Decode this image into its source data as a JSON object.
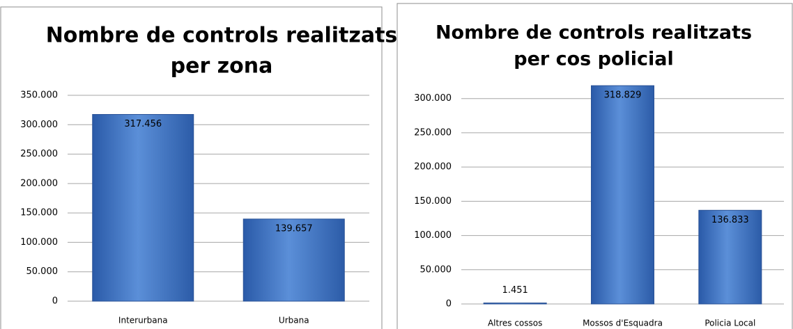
{
  "chart_data": [
    {
      "type": "bar",
      "title": [
        "Nombre de controls realitzats",
        "per zona"
      ],
      "categories": [
        "Interurbana",
        "Urbana"
      ],
      "values": [
        317456,
        139657
      ],
      "value_labels": [
        "317.456",
        "139.657"
      ],
      "color": "#3a6fc0",
      "ylim": [
        0,
        350000
      ],
      "yticks": [
        0,
        {
          "value": 50000,
          "label": "50.000"
        },
        {
          "value": 100000,
          "label": "100.000"
        },
        {
          "value": 150000,
          "label": "150.000"
        },
        {
          "value": 200000,
          "label": "200.000"
        },
        {
          "value": 250000,
          "label": "250.000"
        },
        {
          "value": 300000,
          "label": "300.000"
        },
        {
          "value": 350000,
          "label": "350.000"
        }
      ],
      "grid": true
    },
    {
      "type": "bar",
      "title": [
        "Nombre de controls realitzats",
        "per cos policial"
      ],
      "categories": [
        "Altres cossos",
        "Mossos d'Esquadra",
        "Policia Local"
      ],
      "values": [
        1451,
        318829,
        136833
      ],
      "value_labels": [
        "1.451",
        "318.829",
        "136.833"
      ],
      "color": "#3a6fc0",
      "ylim": [
        0,
        320000
      ],
      "yticks": [
        0,
        {
          "value": 50000,
          "label": "50.000"
        },
        {
          "value": 100000,
          "label": "100.000"
        },
        {
          "value": 150000,
          "label": "150.000"
        },
        {
          "value": 200000,
          "label": "200.000"
        },
        {
          "value": 250000,
          "label": "250.000"
        },
        {
          "value": 300000,
          "label": "300.000"
        }
      ],
      "grid": true
    }
  ]
}
